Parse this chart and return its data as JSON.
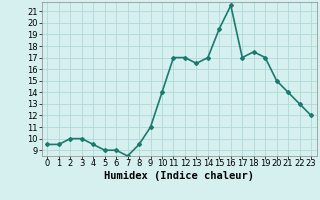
{
  "x": [
    0,
    1,
    2,
    3,
    4,
    5,
    6,
    7,
    8,
    9,
    10,
    11,
    12,
    13,
    14,
    15,
    16,
    17,
    18,
    19,
    20,
    21,
    22,
    23
  ],
  "y": [
    9.5,
    9.5,
    10.0,
    10.0,
    9.5,
    9.0,
    9.0,
    8.5,
    9.5,
    11.0,
    14.0,
    17.0,
    17.0,
    16.5,
    17.0,
    19.5,
    21.5,
    17.0,
    17.5,
    17.0,
    15.0,
    14.0,
    13.0,
    12.0
  ],
  "line_color": "#1a7a6e",
  "marker": "D",
  "marker_size": 2,
  "bg_color": "#d6f0f0",
  "grid_color": "#b0d8d8",
  "xlabel": "Humidex (Indice chaleur)",
  "xlabel_fontsize": 7.5,
  "xlim": [
    -0.5,
    23.5
  ],
  "ylim": [
    8.5,
    21.8
  ],
  "yticks": [
    9,
    10,
    11,
    12,
    13,
    14,
    15,
    16,
    17,
    18,
    19,
    20,
    21
  ],
  "xticks": [
    0,
    1,
    2,
    3,
    4,
    5,
    6,
    7,
    8,
    9,
    10,
    11,
    12,
    13,
    14,
    15,
    16,
    17,
    18,
    19,
    20,
    21,
    22,
    23
  ],
  "tick_fontsize": 6,
  "linewidth": 1.2
}
